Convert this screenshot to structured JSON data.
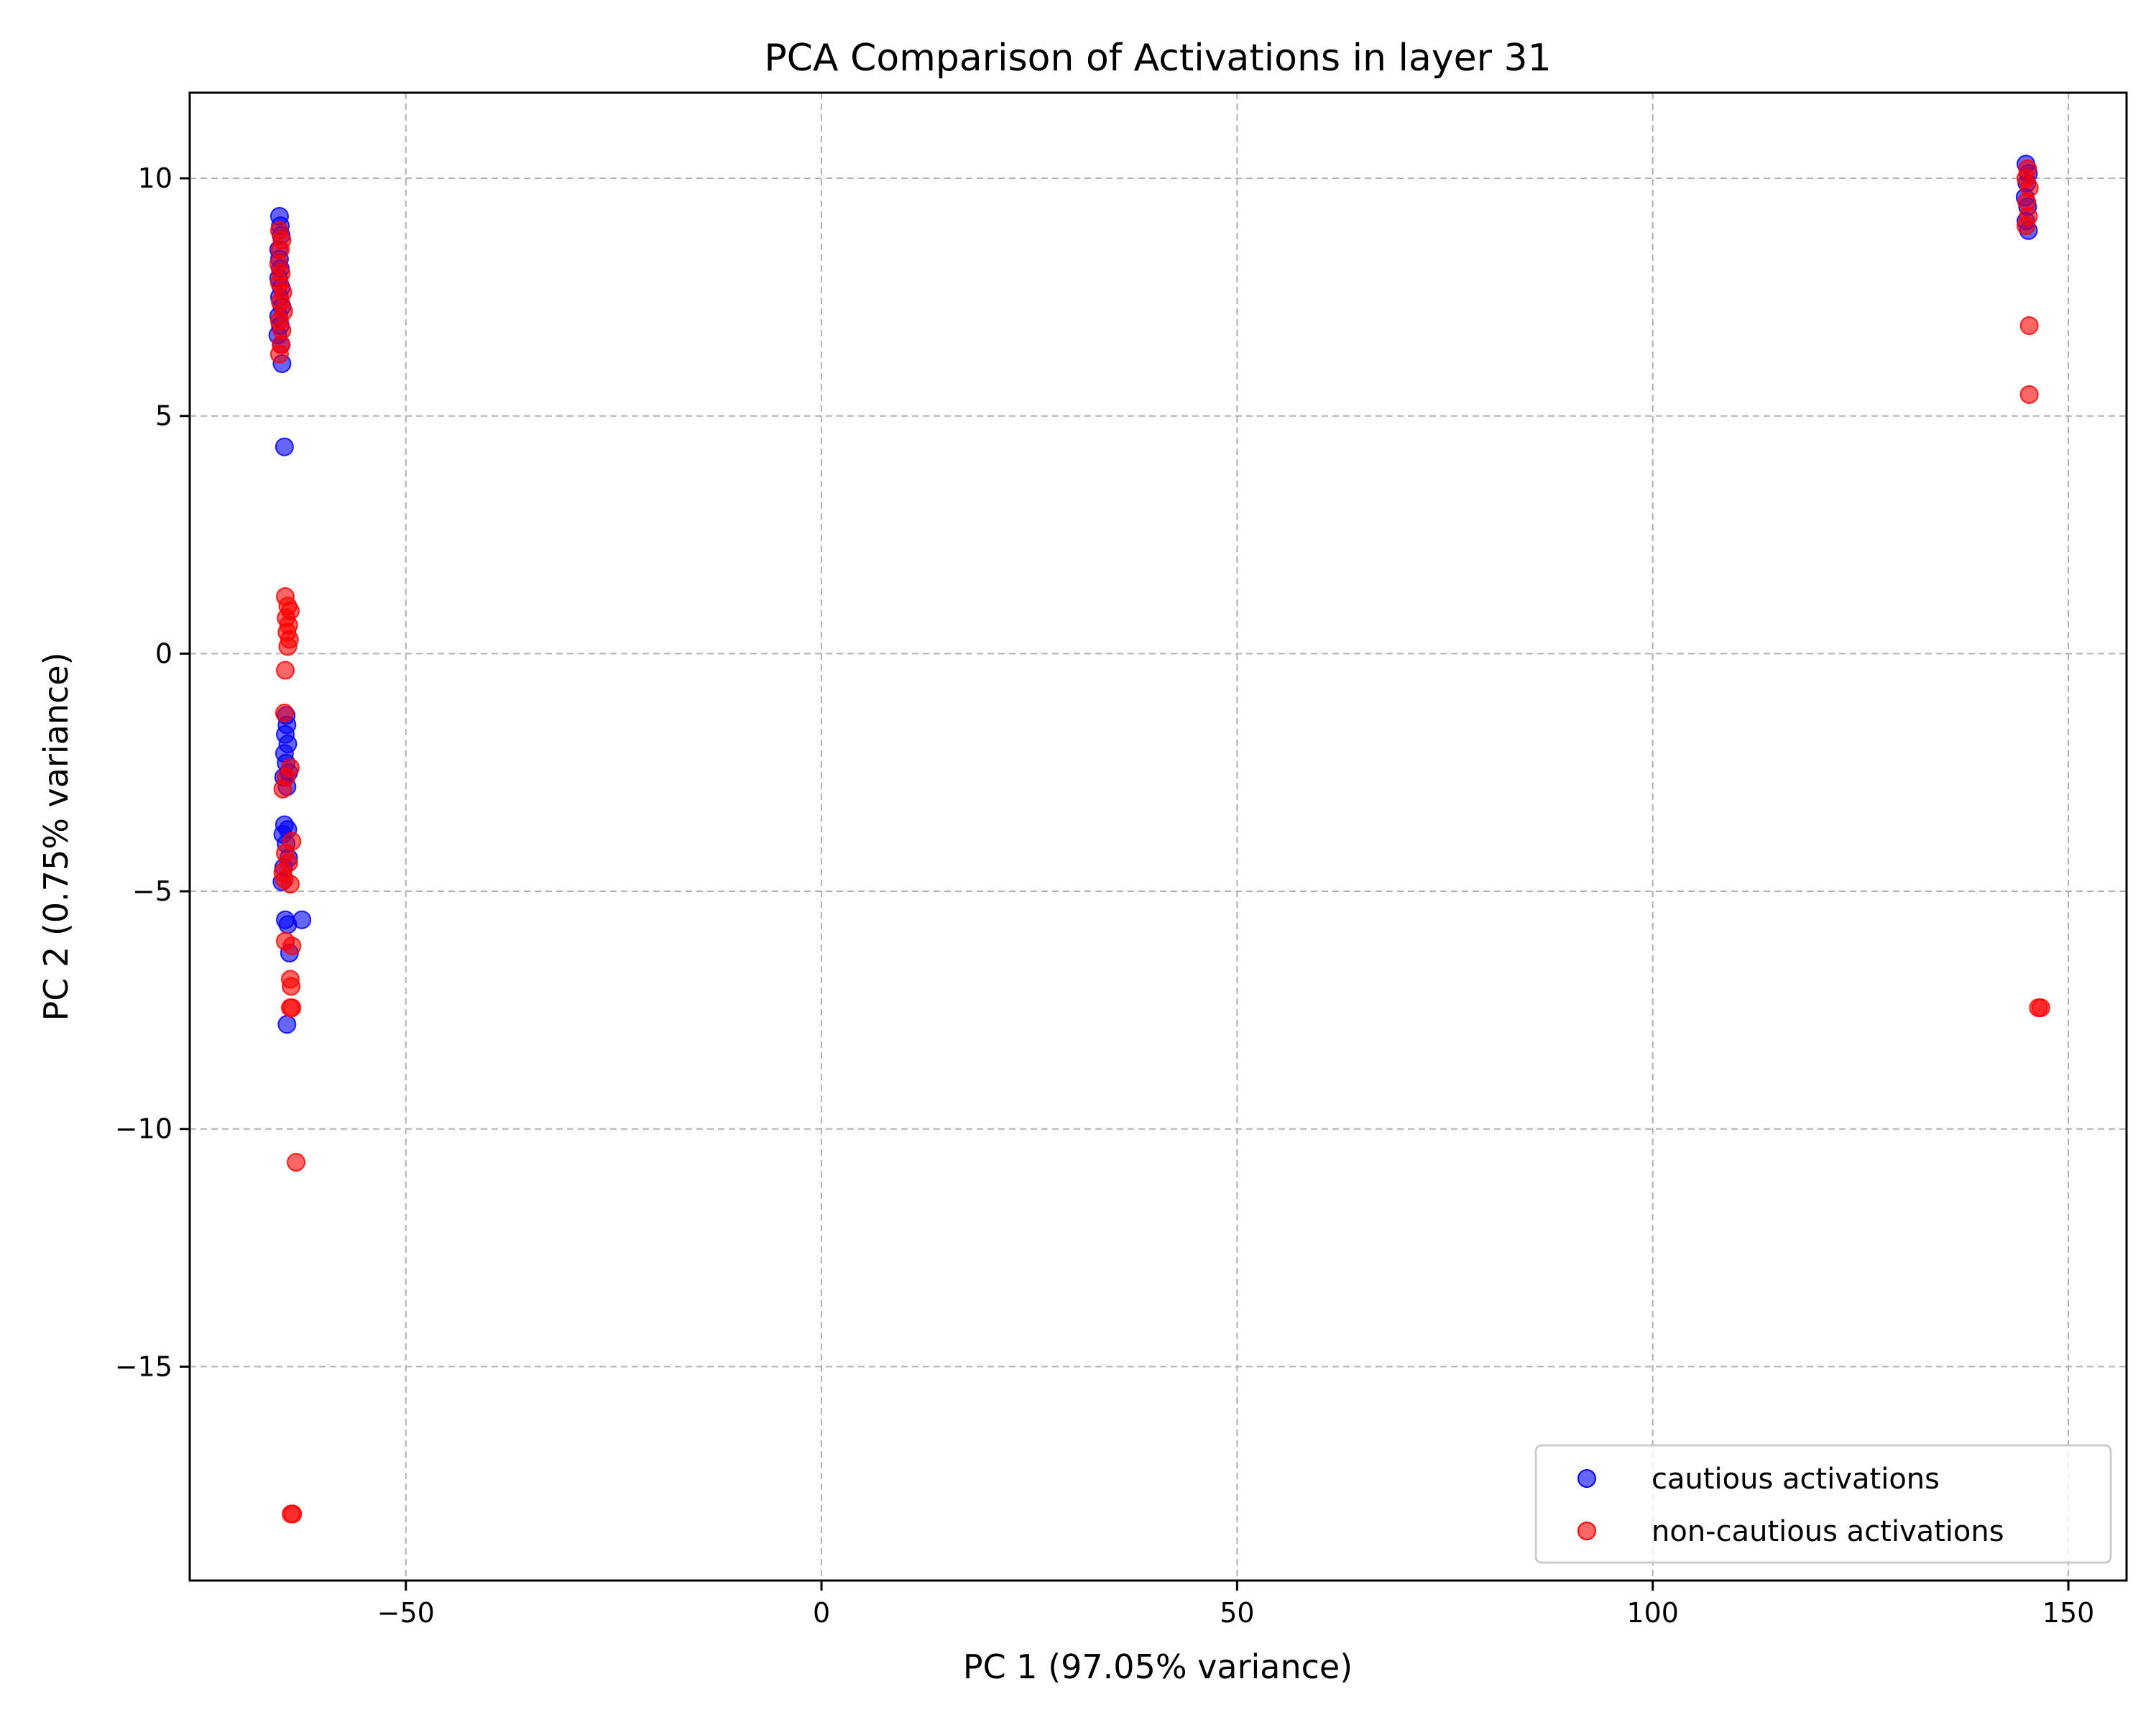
{
  "chart_data": {
    "type": "scatter",
    "title": "PCA Comparison of Activations in layer 31",
    "xlabel": "PC 1 (97.05% variance)",
    "ylabel": "PC 2 (0.75% variance)",
    "xlim": [
      -76,
      157
    ],
    "ylim": [
      -19.5,
      11.8
    ],
    "xticks": [
      -50,
      0,
      50,
      100,
      150
    ],
    "yticks": [
      -15,
      -10,
      -5,
      0,
      5,
      10
    ],
    "xtick_labels": [
      "−50",
      "0",
      "50",
      "100",
      "150"
    ],
    "ytick_labels": [
      "−15",
      "−10",
      "−5",
      "0",
      "5",
      "10"
    ],
    "grid": true,
    "legend_position": "lower-right",
    "series": [
      {
        "name": "cautious activations",
        "color": "#0000ff",
        "points": [
          [
            -65.2,
            9.2
          ],
          [
            -65.1,
            9.0
          ],
          [
            -65.0,
            8.8
          ],
          [
            -65.3,
            8.5
          ],
          [
            -65.2,
            8.3
          ],
          [
            -65.1,
            8.1
          ],
          [
            -65.3,
            7.9
          ],
          [
            -65.0,
            7.7
          ],
          [
            -65.2,
            7.5
          ],
          [
            -64.9,
            7.3
          ],
          [
            -65.3,
            7.1
          ],
          [
            -65.1,
            6.9
          ],
          [
            -65.4,
            6.7
          ],
          [
            -65.0,
            6.5
          ],
          [
            -64.9,
            6.1
          ],
          [
            -64.6,
            4.35
          ],
          [
            -64.4,
            -1.3
          ],
          [
            -64.3,
            -1.5
          ],
          [
            -64.5,
            -1.7
          ],
          [
            -64.2,
            -1.9
          ],
          [
            -64.6,
            -2.1
          ],
          [
            -64.4,
            -2.3
          ],
          [
            -64.1,
            -2.5
          ],
          [
            -64.7,
            -2.6
          ],
          [
            -64.3,
            -2.8
          ],
          [
            -64.6,
            -3.6
          ],
          [
            -64.2,
            -3.7
          ],
          [
            -64.8,
            -3.8
          ],
          [
            -64.4,
            -4.0
          ],
          [
            -64.1,
            -4.3
          ],
          [
            -64.7,
            -4.5
          ],
          [
            -64.9,
            -4.8
          ],
          [
            -64.5,
            -5.6
          ],
          [
            -64.2,
            -5.7
          ],
          [
            -62.5,
            -5.6
          ],
          [
            -64.0,
            -6.3
          ],
          [
            -64.3,
            -7.8
          ]
        ]
      },
      {
        "name": "non-cautious activations",
        "color": "#ff0000",
        "points": [
          [
            -65.2,
            8.9
          ],
          [
            -64.9,
            8.7
          ],
          [
            -65.1,
            8.5
          ],
          [
            -65.3,
            8.2
          ],
          [
            -65.0,
            8.0
          ],
          [
            -65.2,
            7.8
          ],
          [
            -64.8,
            7.6
          ],
          [
            -65.1,
            7.4
          ],
          [
            -64.7,
            7.2
          ],
          [
            -65.2,
            7.0
          ],
          [
            -64.9,
            6.8
          ],
          [
            -65.0,
            6.5
          ],
          [
            -65.2,
            6.3
          ],
          [
            -64.5,
            1.2
          ],
          [
            -64.2,
            1.0
          ],
          [
            -63.9,
            0.9
          ],
          [
            -64.4,
            0.75
          ],
          [
            -64.1,
            0.6
          ],
          [
            -64.3,
            0.45
          ],
          [
            -64.0,
            0.3
          ],
          [
            -64.2,
            0.15
          ],
          [
            -64.5,
            -0.35
          ],
          [
            -64.6,
            -1.25
          ],
          [
            -63.9,
            -2.4
          ],
          [
            -64.4,
            -2.6
          ],
          [
            -64.8,
            -2.85
          ],
          [
            -63.7,
            -3.95
          ],
          [
            -64.5,
            -4.2
          ],
          [
            -64.1,
            -4.4
          ],
          [
            -64.8,
            -4.6
          ],
          [
            -64.6,
            -4.75
          ],
          [
            -63.9,
            -4.85
          ],
          [
            -64.5,
            -6.05
          ],
          [
            -63.7,
            -6.15
          ],
          [
            -63.9,
            -6.85
          ],
          [
            -63.8,
            -7.0
          ],
          [
            -63.9,
            -7.45
          ],
          [
            -63.7,
            -7.45
          ],
          [
            -63.2,
            -10.7
          ],
          [
            -63.8,
            -18.1
          ],
          [
            -63.6,
            -18.1
          ],
          [
            145.1,
            10.2
          ],
          [
            144.9,
            10.0
          ],
          [
            145.3,
            9.8
          ],
          [
            145.0,
            9.5
          ],
          [
            145.2,
            9.2
          ],
          [
            144.9,
            9.0
          ],
          [
            145.3,
            6.9
          ],
          [
            145.3,
            5.45
          ],
          [
            146.4,
            -7.45
          ],
          [
            146.7,
            -7.45
          ]
        ]
      },
      {
        "name": "",
        "legend": false,
        "color": "#0000ff",
        "note_layer": "cautious points at x~145",
        "points": [
          [
            144.9,
            10.3
          ],
          [
            145.2,
            10.1
          ],
          [
            145.0,
            9.9
          ],
          [
            144.8,
            9.6
          ],
          [
            145.1,
            9.4
          ],
          [
            144.9,
            9.1
          ],
          [
            145.2,
            8.9
          ]
        ]
      }
    ]
  }
}
